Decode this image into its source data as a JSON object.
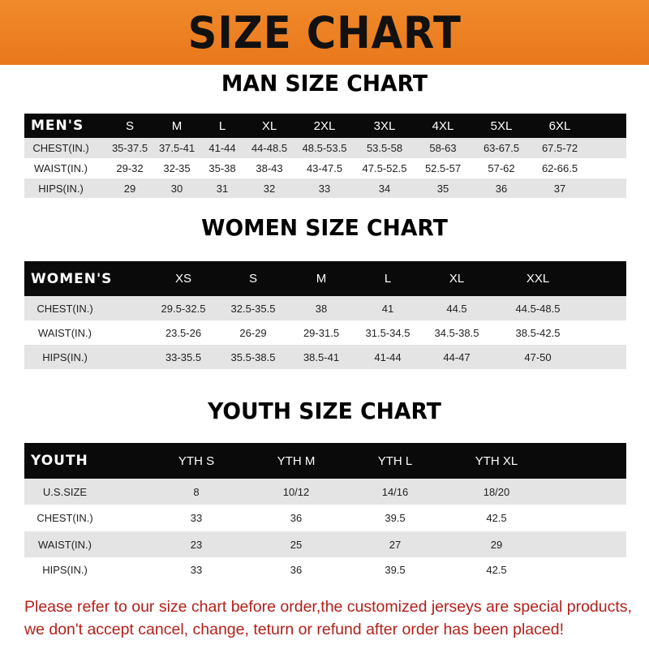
{
  "title": "SIZE CHART",
  "tables": [
    {
      "title": "MAN SIZE CHART",
      "header": [
        "MEN'S",
        "S",
        "M",
        "L",
        "XL",
        "2XL",
        "3XL",
        "4XL",
        "5XL",
        "6XL"
      ],
      "rows": [
        [
          "CHEST(IN.)",
          "35-37.5",
          "37.5-41",
          "41-44",
          "44-48.5",
          "48.5-53.5",
          "53.5-58",
          "58-63",
          "63-67.5",
          "67.5-72"
        ],
        [
          "WAIST(IN.)",
          "29-32",
          "32-35",
          "35-38",
          "38-43",
          "43-47.5",
          "47.5-52.5",
          "52.5-57",
          "57-62",
          "62-66.5"
        ],
        [
          "HIPS(IN.)",
          "29",
          "30",
          "31",
          "32",
          "33",
          "34",
          "35",
          "36",
          "37"
        ]
      ]
    },
    {
      "title": "WOMEN SIZE CHART",
      "header": [
        "WOMEN'S",
        "XS",
        "S",
        "M",
        "L",
        "XL",
        "XXL"
      ],
      "rows": [
        [
          "CHEST(IN.)",
          "29.5-32.5",
          "32.5-35.5",
          "38",
          "41",
          "44.5",
          "44.5-48.5"
        ],
        [
          "WAIST(IN.)",
          "23.5-26",
          "26-29",
          "29-31.5",
          "31.5-34.5",
          "34.5-38.5",
          "38.5-42.5"
        ],
        [
          "HIPS(IN.)",
          "33-35.5",
          "35.5-38.5",
          "38.5-41",
          "41-44",
          "44-47",
          "47-50"
        ]
      ]
    },
    {
      "title": "YOUTH SIZE CHART",
      "header": [
        "YOUTH",
        "YTH S",
        "YTH M",
        "YTH L",
        "YTH XL"
      ],
      "rows": [
        [
          "U.S.SIZE",
          "8",
          "10/12",
          "14/16",
          "18/20"
        ],
        [
          "CHEST(IN.)",
          "33",
          "36",
          "39.5",
          "42.5"
        ],
        [
          "WAIST(IN.)",
          "23",
          "25",
          "27",
          "29"
        ],
        [
          "HIPS(IN.)",
          "33",
          "36",
          "39.5",
          "42.5"
        ]
      ]
    }
  ],
  "footer": {
    "line1": "Please refer to our size chart before order,the customized jerseys are special products,",
    "line2": "we don't accept cancel, change, teturn or refund after order has been placed!"
  },
  "colors": {
    "banner": "#ee8224",
    "header_row": "#0a0a0a",
    "stripe": "#e4e4e4",
    "footer_text": "#b3201a"
  }
}
